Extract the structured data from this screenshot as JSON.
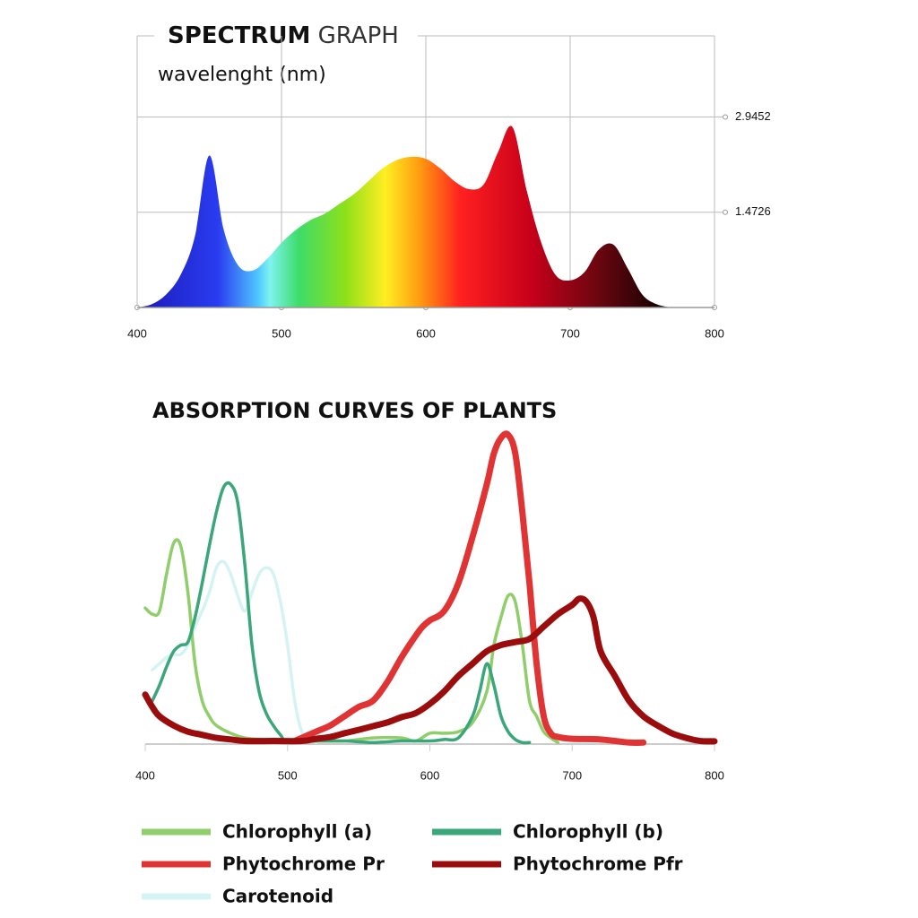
{
  "chart_data": [
    {
      "type": "area",
      "title": "SPECTRUM GRAPH",
      "subtitle": "wavelenght (nm)",
      "x": [
        400,
        410,
        420,
        430,
        440,
        450,
        460,
        470,
        480,
        490,
        500,
        510,
        520,
        530,
        540,
        550,
        560,
        570,
        580,
        590,
        600,
        610,
        620,
        630,
        640,
        650,
        660,
        670,
        680,
        690,
        700,
        710,
        720,
        730,
        740,
        750,
        760,
        770
      ],
      "values": [
        0,
        0.05,
        0.2,
        0.5,
        1.1,
        2.35,
        1.2,
        0.65,
        0.57,
        0.75,
        1.0,
        1.2,
        1.35,
        1.45,
        1.6,
        1.75,
        1.95,
        2.15,
        2.28,
        2.33,
        2.3,
        2.15,
        1.95,
        1.83,
        1.9,
        2.4,
        2.79,
        1.8,
        1.0,
        0.5,
        0.42,
        0.55,
        0.9,
        0.97,
        0.6,
        0.2,
        0.05,
        0
      ],
      "xlim": [
        400,
        800
      ],
      "xticks": [
        400,
        500,
        600,
        700,
        800
      ],
      "ylim": [
        0,
        4.2
      ],
      "yticks": [
        1.4726,
        2.9452
      ],
      "grid": true
    },
    {
      "type": "line",
      "title": "ABSORPTION CURVES OF PLANTS",
      "xlim": [
        400,
        800
      ],
      "xticks": [
        400,
        500,
        600,
        700,
        800
      ],
      "ylim": [
        0,
        1
      ],
      "legend": "bottom",
      "series": [
        {
          "name": "Chlorophyll (a)",
          "color": "#8fce6a",
          "x": [
            400,
            405,
            410,
            415,
            420,
            425,
            430,
            435,
            440,
            445,
            450,
            460,
            470,
            480,
            500,
            520,
            540,
            560,
            580,
            590,
            600,
            610,
            620,
            630,
            640,
            645,
            650,
            655,
            660,
            665,
            670,
            675,
            680,
            685,
            690
          ],
          "values": [
            0.44,
            0.42,
            0.43,
            0.55,
            0.65,
            0.64,
            0.49,
            0.26,
            0.14,
            0.09,
            0.06,
            0.035,
            0.02,
            0.015,
            0.01,
            0.01,
            0.01,
            0.02,
            0.02,
            0.01,
            0.035,
            0.035,
            0.04,
            0.07,
            0.17,
            0.32,
            0.41,
            0.48,
            0.46,
            0.32,
            0.14,
            0.09,
            0.04,
            0.02,
            0.005
          ]
        },
        {
          "name": "Chlorophyll (b)",
          "color": "#3aa67a",
          "x": [
            405,
            410,
            415,
            420,
            425,
            430,
            435,
            440,
            445,
            450,
            455,
            460,
            465,
            470,
            475,
            480,
            485,
            490,
            495,
            500,
            520,
            540,
            560,
            580,
            600,
            610,
            620,
            630,
            635,
            640,
            645,
            650,
            655,
            660,
            665,
            670
          ],
          "values": [
            0.14,
            0.19,
            0.25,
            0.3,
            0.32,
            0.33,
            0.41,
            0.52,
            0.64,
            0.75,
            0.83,
            0.84,
            0.78,
            0.58,
            0.32,
            0.17,
            0.1,
            0.06,
            0.03,
            0.01,
            0.01,
            0.01,
            0.005,
            0.01,
            0.01,
            0.015,
            0.02,
            0.09,
            0.17,
            0.26,
            0.19,
            0.09,
            0.04,
            0.015,
            0.005,
            0.005
          ]
        },
        {
          "name": "Phytochrome Pr",
          "color": "#e03434",
          "x": [
            505,
            510,
            520,
            530,
            540,
            550,
            560,
            570,
            580,
            590,
            595,
            600,
            610,
            620,
            630,
            640,
            645,
            650,
            655,
            660,
            665,
            670,
            675,
            680,
            685,
            690,
            700,
            720,
            740,
            750
          ],
          "values": [
            0.01,
            0.02,
            0.04,
            0.06,
            0.09,
            0.12,
            0.14,
            0.2,
            0.28,
            0.35,
            0.38,
            0.4,
            0.43,
            0.52,
            0.67,
            0.84,
            0.94,
            0.99,
            1.0,
            0.94,
            0.75,
            0.52,
            0.26,
            0.09,
            0.035,
            0.023,
            0.017,
            0.015,
            0.005,
            0.005
          ]
        },
        {
          "name": "Phytochrome Pfr",
          "color": "#9b0d0d",
          "x": [
            400,
            405,
            410,
            420,
            430,
            440,
            450,
            460,
            470,
            490,
            510,
            520,
            530,
            540,
            550,
            560,
            570,
            580,
            590,
            600,
            610,
            620,
            630,
            640,
            650,
            660,
            670,
            680,
            690,
            700,
            705,
            710,
            715,
            720,
            730,
            740,
            750,
            760,
            770,
            780,
            790,
            800
          ],
          "values": [
            0.16,
            0.12,
            0.09,
            0.06,
            0.04,
            0.03,
            0.02,
            0.015,
            0.01,
            0.01,
            0.01,
            0.017,
            0.023,
            0.035,
            0.046,
            0.058,
            0.07,
            0.087,
            0.1,
            0.13,
            0.17,
            0.22,
            0.26,
            0.3,
            0.32,
            0.33,
            0.34,
            0.38,
            0.42,
            0.45,
            0.47,
            0.46,
            0.41,
            0.3,
            0.22,
            0.14,
            0.09,
            0.06,
            0.035,
            0.02,
            0.01,
            0.009
          ]
        },
        {
          "name": "Carotenoid",
          "color": "#d6f3f3",
          "x": [
            405,
            410,
            415,
            420,
            425,
            430,
            435,
            440,
            445,
            450,
            455,
            460,
            465,
            470,
            475,
            480,
            485,
            490,
            495,
            500,
            505,
            510,
            515,
            520
          ],
          "values": [
            0.24,
            0.26,
            0.28,
            0.29,
            0.29,
            0.32,
            0.38,
            0.43,
            0.49,
            0.57,
            0.59,
            0.55,
            0.48,
            0.43,
            0.49,
            0.55,
            0.57,
            0.55,
            0.46,
            0.32,
            0.14,
            0.04,
            0.015,
            0.005
          ]
        }
      ]
    }
  ]
}
